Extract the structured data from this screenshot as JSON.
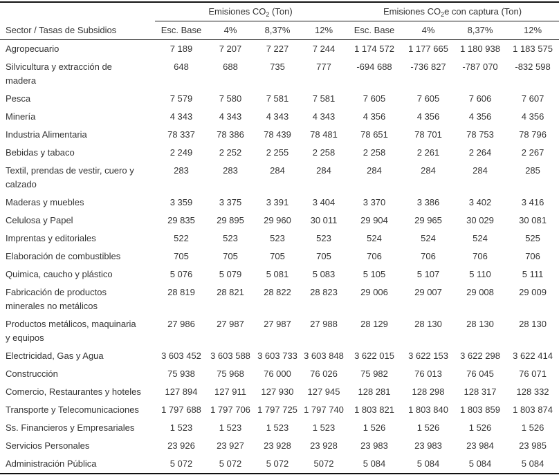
{
  "table": {
    "group_headers": {
      "co2": {
        "prefix": "Emisiones CO",
        "sub": "2",
        "suffix": " (Ton)"
      },
      "co2e": {
        "prefix": "Emisiones CO",
        "sub": "2",
        "suffix": "e con captura (Ton)"
      }
    },
    "sector_header": "Sector / Tasas de Subsidios",
    "column_headers": [
      "Esc. Base",
      "4%",
      "8,37%",
      "12%",
      "Esc. Base",
      "4%",
      "8,37%",
      "12%"
    ],
    "rows": [
      {
        "sector": "Agropecuario",
        "values": [
          "7 189",
          "7 207",
          "7 227",
          "7 244",
          "1 174 572",
          "1 177 665",
          "1 180 938",
          "1 183 575"
        ]
      },
      {
        "sector": "Silvicultura y extracción de\nmadera",
        "values": [
          "648",
          "688",
          "735",
          "777",
          "-694 688",
          "-736 827",
          "-787 070",
          "-832 598"
        ]
      },
      {
        "sector": "Pesca",
        "values": [
          "7 579",
          "7 580",
          "7 581",
          "7 581",
          "7 605",
          "7 605",
          "7 606",
          "7 607"
        ]
      },
      {
        "sector": "Minería",
        "values": [
          "4 343",
          "4 343",
          "4 343",
          "4 343",
          "4 356",
          "4 356",
          "4 356",
          "4 356"
        ]
      },
      {
        "sector": "Industria Alimentaria",
        "values": [
          "78 337",
          "78 386",
          "78 439",
          "78 481",
          "78 651",
          "78 701",
          "78 753",
          "78 796"
        ]
      },
      {
        "sector": "Bebidas y tabaco",
        "values": [
          "2 249",
          "2 252",
          "2 255",
          "2 258",
          "2 258",
          "2 261",
          "2 264",
          "2 267"
        ]
      },
      {
        "sector": "Textil, prendas de vestir, cuero y\ncalzado",
        "values": [
          "283",
          "283",
          "284",
          "284",
          "284",
          "284",
          "284",
          "285"
        ]
      },
      {
        "sector": "Maderas y muebles",
        "values": [
          "3 359",
          "3 375",
          "3 391",
          "3 404",
          "3 370",
          "3 386",
          "3 402",
          "3 416"
        ]
      },
      {
        "sector": "Celulosa y Papel",
        "values": [
          "29 835",
          "29 895",
          "29 960",
          "30 011",
          "29 904",
          "29 965",
          "30 029",
          "30 081"
        ]
      },
      {
        "sector": "Imprentas y editoriales",
        "values": [
          "522",
          "523",
          "523",
          "523",
          "524",
          "524",
          "524",
          "525"
        ]
      },
      {
        "sector": "Elaboración de combustibles",
        "values": [
          "705",
          "705",
          "705",
          "705",
          "706",
          "706",
          "706",
          "706"
        ]
      },
      {
        "sector": "Quimica, caucho y plástico",
        "values": [
          "5 076",
          "5 079",
          "5 081",
          "5 083",
          "5 105",
          "5 107",
          "5 110",
          "5 111"
        ]
      },
      {
        "sector": "Fabricación de productos\nminerales no metálicos",
        "values": [
          "28 819",
          "28 821",
          "28 822",
          "28 823",
          "29 006",
          "29 007",
          "29 008",
          "29 009"
        ]
      },
      {
        "sector": "Productos metálicos, maquinaria\ny equipos",
        "values": [
          "27 986",
          "27 987",
          "27 987",
          "27 988",
          "28 129",
          "28 130",
          "28 130",
          "28 130"
        ]
      },
      {
        "sector": "Electricidad, Gas y Agua",
        "values": [
          "3 603 452",
          "3 603 588",
          "3 603 733",
          "3 603 848",
          "3 622 015",
          "3 622 153",
          "3 622 298",
          "3 622 414"
        ]
      },
      {
        "sector": "Construcción",
        "values": [
          "75 938",
          "75 968",
          "76 000",
          "76 026",
          "75 982",
          "76 013",
          "76 045",
          "76 071"
        ]
      },
      {
        "sector": "Comercio, Restaurantes y hoteles",
        "values": [
          "127 894",
          "127 911",
          "127 930",
          "127 945",
          "128 281",
          "128 298",
          "128 317",
          "128 332"
        ]
      },
      {
        "sector": "Transporte y Telecomunicaciones",
        "values": [
          "1 797 688",
          "1 797 706",
          "1 797 725",
          "1 797 740",
          "1 803 821",
          "1 803 840",
          "1 803 859",
          "1 803 874"
        ]
      },
      {
        "sector": "Ss. Financieros y Empresariales",
        "values": [
          "1 523",
          "1 523",
          "1 523",
          "1 523",
          "1 526",
          "1 526",
          "1 526",
          "1 526"
        ]
      },
      {
        "sector": "Servicios Personales",
        "values": [
          "23 926",
          "23 927",
          "23 928",
          "23 928",
          "23 983",
          "23 983",
          "23 984",
          "23 985"
        ]
      },
      {
        "sector": "Administración Pública",
        "values": [
          "5 072",
          "5 072",
          "5 072",
          "5072",
          "5 084",
          "5 084",
          "5 084",
          "5 084"
        ]
      }
    ]
  }
}
